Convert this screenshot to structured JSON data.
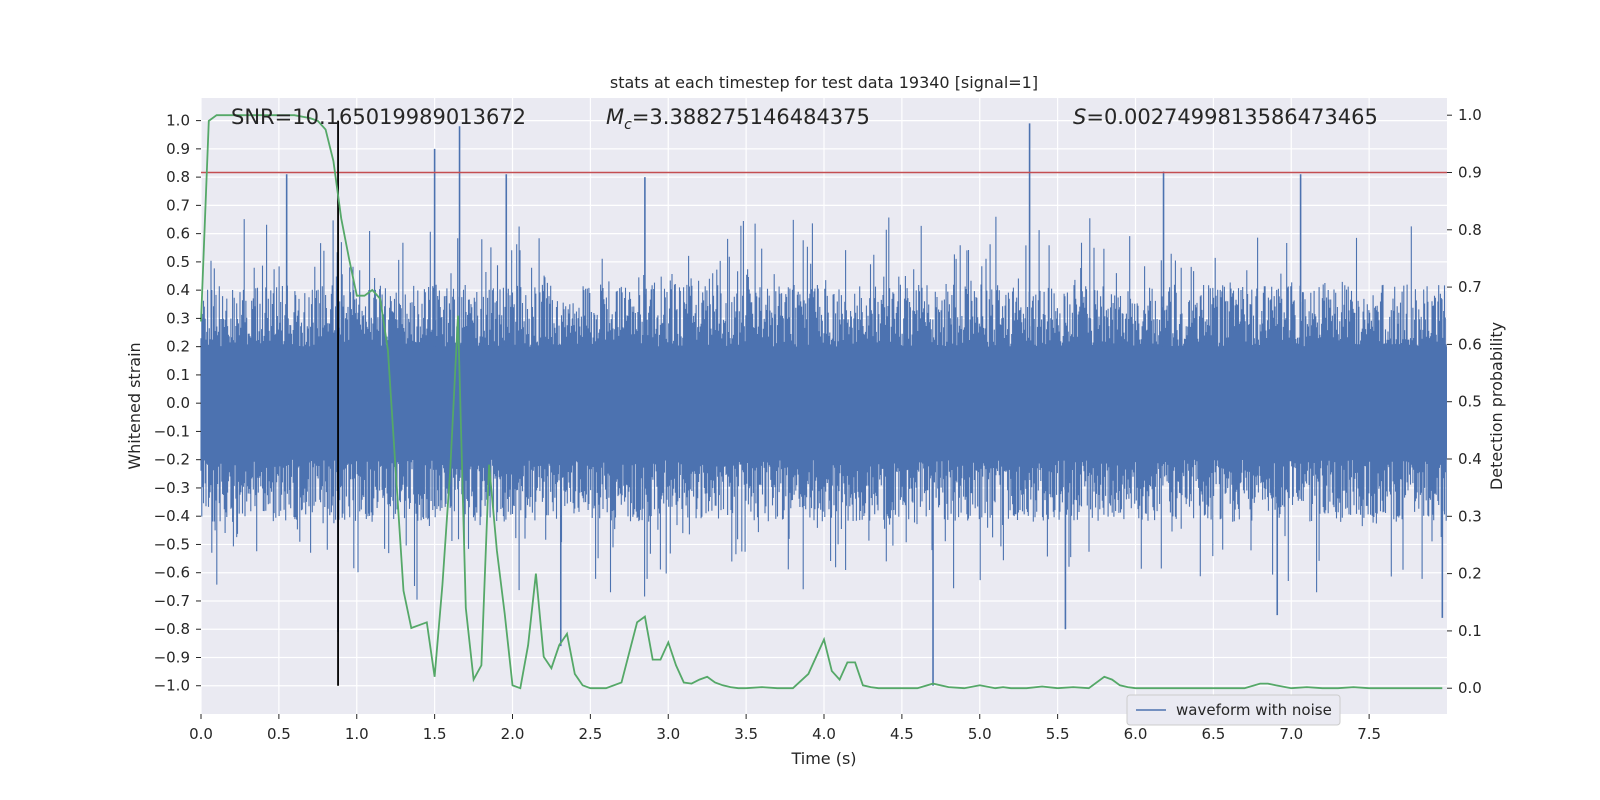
{
  "chart_data": {
    "type": "line",
    "title": "stats at each timestep for test data 19340 [signal=1]",
    "xlabel": "Time (s)",
    "ylabel_left": "Whitened strain",
    "ylabel_right": "Detection probability",
    "xlim": [
      0.0,
      8.0
    ],
    "ylim_left": [
      -1.1,
      1.08
    ],
    "ylim_right": [
      -0.045,
      1.03
    ],
    "x_ticks": [
      "0.0",
      "0.5",
      "1.0",
      "1.5",
      "2.0",
      "2.5",
      "3.0",
      "3.5",
      "4.0",
      "4.5",
      "5.0",
      "5.5",
      "6.0",
      "6.5",
      "7.0",
      "7.5"
    ],
    "y_ticks_left": [
      "1.0",
      "0.9",
      "0.8",
      "0.7",
      "0.6",
      "0.5",
      "0.4",
      "0.3",
      "0.2",
      "0.1",
      "0.0",
      "−0.1",
      "−0.2",
      "−0.3",
      "−0.4",
      "−0.5",
      "−0.6",
      "−0.7",
      "−0.8",
      "−0.9",
      "−1.0"
    ],
    "y_ticks_right": [
      "1.0",
      "0.9",
      "0.8",
      "0.7",
      "0.6",
      "0.5",
      "0.4",
      "0.3",
      "0.2",
      "0.1",
      "0.0"
    ],
    "annotations": {
      "snr": "SNR=10.165019989013672",
      "mc_symbol": "M",
      "mc_sub": "c",
      "mc_value": "=3.388275146484375",
      "s_symbol": "S",
      "s_value": "=0.0027499813586473465"
    },
    "threshold_line": {
      "axis": "right",
      "y": 0.9,
      "color": "#c44e52"
    },
    "detection_time_line": {
      "x": 0.88,
      "y_range": [
        -1.0,
        1.0
      ],
      "color": "#000000"
    },
    "series": [
      {
        "name": "waveform with noise",
        "axis": "left",
        "color": "#4c72b0",
        "description": "noisy whitened strain, dense fill roughly between -0.4 and 0.4 with spikes",
        "amplitude_band": [
          -0.42,
          0.42
        ],
        "spikes": [
          {
            "x": 0.55,
            "y": 0.81
          },
          {
            "x": 1.5,
            "y": 0.9
          },
          {
            "x": 1.66,
            "y": 0.98
          },
          {
            "x": 1.96,
            "y": 0.81
          },
          {
            "x": 2.85,
            "y": 0.8
          },
          {
            "x": 5.32,
            "y": 0.99
          },
          {
            "x": 6.18,
            "y": 0.82
          },
          {
            "x": 7.06,
            "y": 0.81
          },
          {
            "x": 4.7,
            "y": -1.0
          },
          {
            "x": 2.31,
            "y": -0.86
          },
          {
            "x": 5.55,
            "y": -0.8
          },
          {
            "x": 0.88,
            "y": -0.81
          },
          {
            "x": 6.91,
            "y": -0.75
          },
          {
            "x": 7.97,
            "y": -0.76
          }
        ]
      },
      {
        "name": "detection probability",
        "axis": "right",
        "color": "#55a868",
        "x": [
          0.0,
          0.05,
          0.1,
          0.2,
          0.4,
          0.6,
          0.7,
          0.75,
          0.8,
          0.85,
          0.9,
          0.95,
          1.0,
          1.05,
          1.1,
          1.15,
          1.2,
          1.25,
          1.3,
          1.35,
          1.4,
          1.45,
          1.5,
          1.55,
          1.6,
          1.65,
          1.7,
          1.75,
          1.8,
          1.85,
          1.9,
          1.95,
          2.0,
          2.05,
          2.1,
          2.15,
          2.2,
          2.25,
          2.3,
          2.35,
          2.4,
          2.45,
          2.5,
          2.55,
          2.6,
          2.7,
          2.8,
          2.85,
          2.9,
          2.95,
          3.0,
          3.05,
          3.1,
          3.15,
          3.2,
          3.25,
          3.3,
          3.35,
          3.4,
          3.45,
          3.5,
          3.6,
          3.7,
          3.8,
          3.9,
          4.0,
          4.05,
          4.1,
          4.15,
          4.2,
          4.25,
          4.3,
          4.35,
          4.4,
          4.45,
          4.5,
          4.6,
          4.7,
          4.8,
          4.9,
          5.0,
          5.1,
          5.15,
          5.2,
          5.3,
          5.4,
          5.5,
          5.6,
          5.7,
          5.8,
          5.85,
          5.9,
          5.95,
          6.0,
          6.1,
          6.2,
          6.3,
          6.4,
          6.5,
          6.6,
          6.7,
          6.8,
          6.85,
          6.9,
          7.0,
          7.1,
          7.2,
          7.3,
          7.4,
          7.5,
          7.6,
          7.7,
          7.8,
          7.9,
          7.97
        ],
        "y": [
          0.64,
          0.99,
          1.0,
          1.0,
          1.0,
          1.0,
          0.995,
          0.99,
          0.975,
          0.92,
          0.82,
          0.75,
          0.685,
          0.685,
          0.695,
          0.68,
          0.59,
          0.38,
          0.17,
          0.105,
          0.11,
          0.115,
          0.02,
          0.18,
          0.38,
          0.65,
          0.14,
          0.015,
          0.04,
          0.39,
          0.24,
          0.13,
          0.005,
          0.0,
          0.075,
          0.2,
          0.055,
          0.035,
          0.075,
          0.095,
          0.025,
          0.005,
          0.0,
          0.0,
          0.0,
          0.01,
          0.115,
          0.125,
          0.05,
          0.05,
          0.08,
          0.04,
          0.01,
          0.008,
          0.015,
          0.02,
          0.01,
          0.005,
          0.002,
          0.0,
          0.0,
          0.002,
          0.0,
          0.0,
          0.025,
          0.085,
          0.03,
          0.015,
          0.045,
          0.045,
          0.005,
          0.002,
          0.0,
          0.0,
          0.0,
          0.0,
          0.0,
          0.008,
          0.002,
          0.0,
          0.005,
          0.0,
          0.002,
          0.0,
          0.0,
          0.003,
          0.0,
          0.002,
          0.0,
          0.02,
          0.015,
          0.005,
          0.002,
          0.0,
          0.0,
          0.0,
          0.0,
          0.0,
          0.0,
          0.0,
          0.0,
          0.008,
          0.008,
          0.005,
          0.0,
          0.002,
          0.0,
          0.0,
          0.002,
          0.0,
          0.0,
          0.0,
          0.0,
          0.0,
          0.0
        ]
      }
    ],
    "legend": {
      "placement": "lower-right",
      "entries": [
        "waveform with noise"
      ]
    }
  }
}
